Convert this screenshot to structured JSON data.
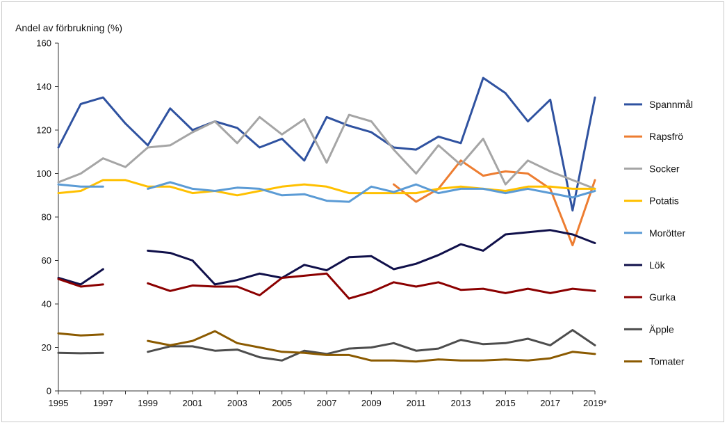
{
  "chart_data": {
    "type": "line",
    "title": "",
    "ylabel": "Andel av förbrukning (%)",
    "xlabel": "",
    "ylim": [
      0,
      160
    ],
    "yticks": [
      "0",
      "20",
      "40",
      "60",
      "80",
      "100",
      "120",
      "140",
      "160"
    ],
    "x": [
      "1995",
      "1996",
      "1997",
      "1998",
      "1999",
      "2000",
      "2001",
      "2002",
      "2003",
      "2004",
      "2005",
      "2006",
      "2007",
      "2008",
      "2009",
      "2010",
      "2011",
      "2012",
      "2013",
      "2014",
      "2015",
      "2016",
      "2017",
      "2018",
      "2019*"
    ],
    "xticks": [
      "1995",
      "1997",
      "1999",
      "2001",
      "2003",
      "2005",
      "2007",
      "2009",
      "2011",
      "2013",
      "2015",
      "2017",
      "2019*"
    ],
    "grid": false,
    "legend_position": "right",
    "series": [
      {
        "name": "Spannmål",
        "color": "#2f52a0",
        "values": [
          112,
          132,
          135,
          123,
          113,
          130,
          120,
          124,
          121,
          112,
          116,
          106,
          126,
          122,
          119,
          112,
          111,
          117,
          114,
          144,
          137,
          124,
          134,
          83,
          135
        ]
      },
      {
        "name": "Rapsfrö",
        "color": "#ed7d31",
        "values": [
          null,
          null,
          null,
          null,
          null,
          null,
          null,
          null,
          null,
          null,
          null,
          null,
          null,
          null,
          null,
          95,
          87,
          93,
          106,
          99,
          101,
          100,
          93,
          67,
          97
        ]
      },
      {
        "name": "Socker",
        "color": "#a5a5a5",
        "values": [
          96,
          100,
          107,
          103,
          112,
          113,
          119,
          124,
          114,
          126,
          118,
          125,
          105,
          127,
          124,
          111,
          100,
          113,
          104,
          116,
          95,
          106,
          101,
          97,
          93
        ]
      },
      {
        "name": "Potatis",
        "color": "#ffc000",
        "values": [
          91,
          92,
          97,
          97,
          94,
          94,
          91,
          92,
          90,
          92,
          94,
          95,
          94,
          91,
          91,
          91,
          91,
          93,
          94,
          93,
          92,
          94,
          94,
          93,
          93
        ]
      },
      {
        "name": "Morötter",
        "color": "#5b9bd5",
        "values": [
          95,
          94,
          94,
          null,
          93,
          96,
          93,
          92,
          93.5,
          93,
          90,
          90.5,
          87.5,
          87,
          94,
          91.5,
          95,
          91,
          93,
          93,
          91,
          93,
          91,
          89,
          92
        ]
      },
      {
        "name": "Lök",
        "color": "#10104a",
        "values": [
          52,
          49,
          56,
          null,
          64.5,
          63.5,
          60,
          49,
          51,
          54,
          52,
          58,
          55.5,
          61.5,
          62,
          56,
          58.5,
          62.5,
          67.5,
          64.5,
          72,
          73,
          74,
          72,
          68
        ]
      },
      {
        "name": "Gurka",
        "color": "#8b0000",
        "values": [
          51.5,
          48,
          49,
          null,
          49.5,
          46,
          48.5,
          48,
          48,
          44,
          52,
          53,
          54,
          42.5,
          45.5,
          50,
          48,
          50,
          46.5,
          47,
          45,
          47,
          45,
          47,
          46
        ]
      },
      {
        "name": "Äpple",
        "color": "#4d4d4d",
        "values": [
          17.5,
          17.3,
          17.5,
          null,
          18,
          20.5,
          20.5,
          18.5,
          19,
          15.5,
          14,
          18.5,
          17,
          19.5,
          20,
          22,
          18.5,
          19.5,
          23.5,
          21.5,
          22,
          24,
          21,
          28,
          21
        ]
      },
      {
        "name": "Tomater",
        "color": "#8b5a00",
        "values": [
          26.5,
          25.5,
          26,
          null,
          23,
          21,
          23,
          27.5,
          22,
          20,
          18,
          17.5,
          16.5,
          16.5,
          14,
          14,
          13.5,
          14.5,
          14,
          14,
          14.5,
          14,
          15,
          18,
          17
        ]
      }
    ]
  }
}
